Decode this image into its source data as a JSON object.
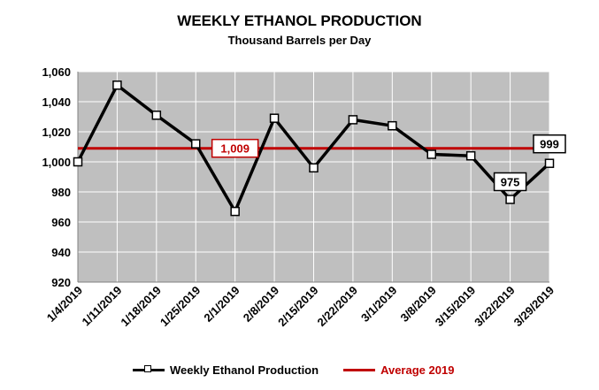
{
  "chart_data": {
    "type": "line",
    "title": "WEEKLY ETHANOL PRODUCTION",
    "subtitle": "Thousand Barrels per Day",
    "xlabel": "",
    "ylabel": "",
    "ylim": [
      920,
      1060
    ],
    "yticks": [
      920,
      940,
      960,
      980,
      "1,000",
      "1,020",
      "1,040",
      "1,060"
    ],
    "ytick_values": [
      920,
      940,
      960,
      980,
      1000,
      1020,
      1040,
      1060
    ],
    "categories": [
      "1/4/2019",
      "1/11/2019",
      "1/18/2019",
      "1/25/2019",
      "2/1/2019",
      "2/8/2019",
      "2/15/2019",
      "2/22/2019",
      "3/1/2019",
      "3/8/2019",
      "3/15/2019",
      "3/22/2019",
      "3/29/2019"
    ],
    "series": [
      {
        "name": "Weekly Ethanol Production",
        "color": "#000000",
        "values": [
          1000,
          1051,
          1031,
          1012,
          967,
          1029,
          996,
          1028,
          1024,
          1005,
          1004,
          975,
          999
        ]
      },
      {
        "name": "Average 2019",
        "color": "#c00000",
        "values": [
          1009,
          1009,
          1009,
          1009,
          1009,
          1009,
          1009,
          1009,
          1009,
          1009,
          1009,
          1009,
          1009
        ]
      }
    ],
    "annotations": [
      {
        "label": "1,009",
        "series": "Average 2019",
        "index": 4,
        "border": "#c00000",
        "text_color": "#c00000"
      },
      {
        "label": "975",
        "series": "Weekly Ethanol Production",
        "index": 11,
        "border": "#000000",
        "text_color": "#000000"
      },
      {
        "label": "999",
        "series": "Weekly Ethanol Production",
        "index": 12,
        "border": "#000000",
        "text_color": "#000000"
      }
    ],
    "grid": true,
    "plot_background": "#bfbfbf",
    "legend": "bottom"
  },
  "legend": {
    "items": [
      {
        "label": "Weekly Ethanol Production",
        "color": "#000000"
      },
      {
        "label": "Average 2019",
        "color": "#c00000"
      }
    ]
  }
}
